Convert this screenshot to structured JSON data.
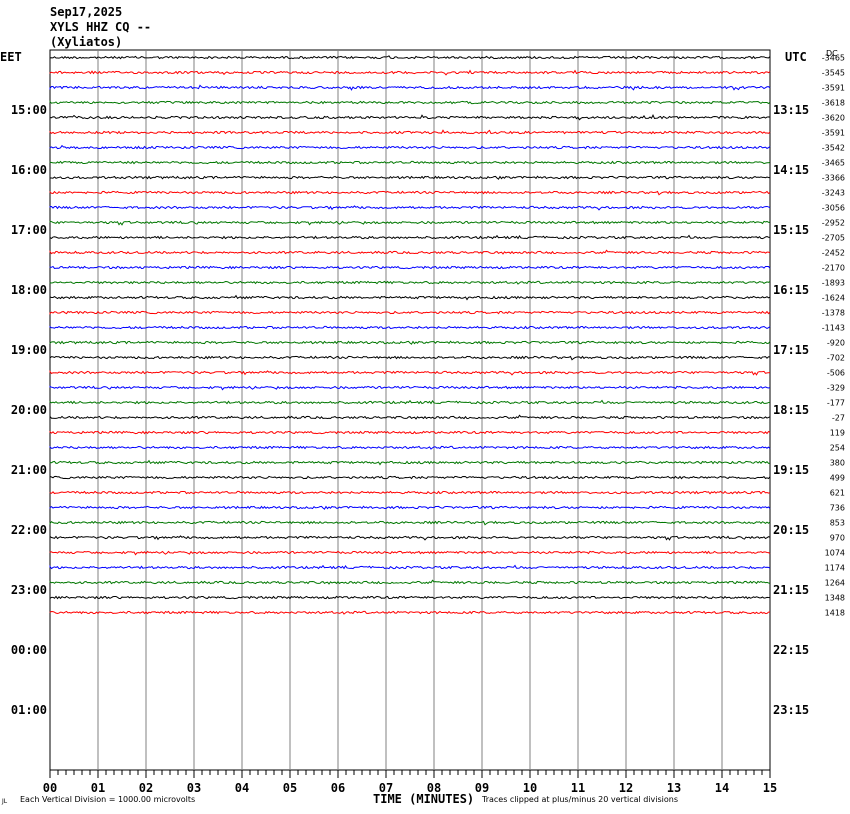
{
  "header": {
    "date": "Sep17,2025",
    "station": "XYLS HHZ CQ --",
    "location": "(Xyliatos)"
  },
  "left_timezone": "EET",
  "right_timezone": "UTC",
  "dc_header": "DC",
  "footer": {
    "scale_note": "Each Vertical Division = 1000.00 microvolts",
    "xlabel": "TIME (MINUTES)",
    "clip_note": "Traces clipped at plus/minus 20 vertical divisions",
    "corner_mark": "JL"
  },
  "colors": {
    "trace_cycle": [
      "#000000",
      "#ff0000",
      "#0000ff",
      "#007700"
    ],
    "grid": "#808080"
  },
  "chart_data": {
    "type": "line",
    "title": "XYLS HHZ CQ -- (Xyliatos)",
    "xlabel": "TIME (MINUTES)",
    "xlim": [
      0,
      15
    ],
    "x_ticks": [
      "00",
      "01",
      "02",
      "03",
      "04",
      "05",
      "06",
      "07",
      "08",
      "09",
      "10",
      "11",
      "12",
      "13",
      "14",
      "15"
    ],
    "rows": 48,
    "rows_with_data": 38,
    "left_hour_labels": [
      "15:00",
      "16:00",
      "17:00",
      "18:00",
      "19:00",
      "20:00",
      "21:00",
      "22:00",
      "23:00",
      "00:00",
      "01:00"
    ],
    "right_hour_labels": [
      "13:15",
      "14:15",
      "15:15",
      "16:15",
      "17:15",
      "18:15",
      "19:15",
      "20:15",
      "21:15",
      "22:15",
      "23:15"
    ],
    "dc_offsets": [
      -3465,
      -3545,
      -3591,
      -3618,
      -3620,
      -3591,
      -3542,
      -3465,
      -3366,
      -3243,
      -3056,
      -2952,
      -2705,
      -2452,
      -2170,
      -1893,
      -1624,
      -1378,
      -1143,
      -920,
      -702,
      -506,
      -329,
      -177,
      -27,
      119,
      254,
      380,
      499,
      621,
      736,
      853,
      970,
      1074,
      1174,
      1264,
      1348,
      1418
    ]
  }
}
